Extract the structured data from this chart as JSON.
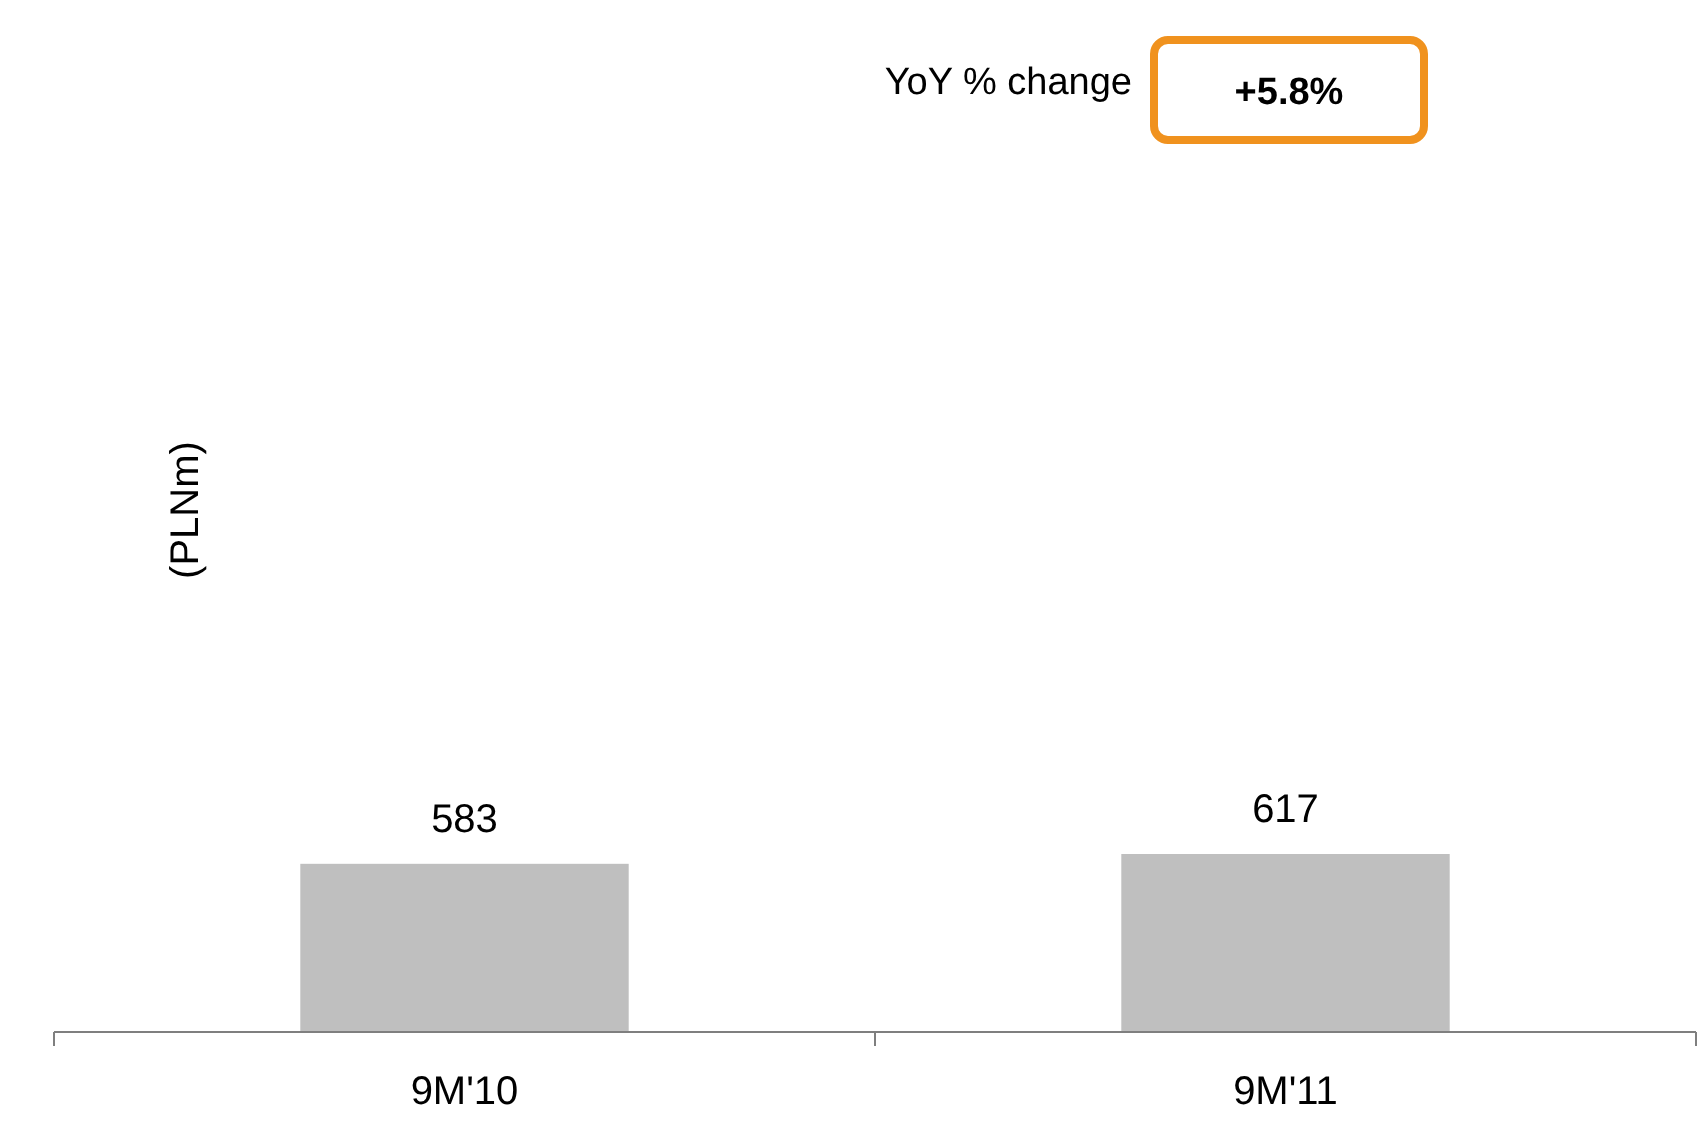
{
  "chart_data": {
    "type": "bar",
    "categories": [
      "9M'10",
      "9M'11"
    ],
    "values": [
      583,
      617
    ],
    "color": "#bfbfbf",
    "data_labels": true,
    "annotations": [
      "YoY  % change",
      "+5.8%",
      "(PLNm)"
    ]
  }
}
